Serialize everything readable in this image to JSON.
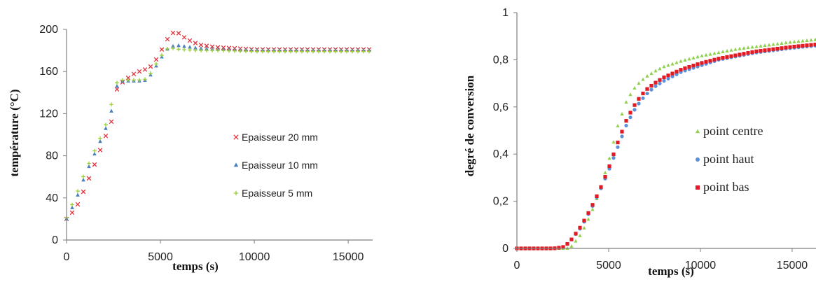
{
  "chart_data": [
    {
      "type": "scatter",
      "title": "",
      "xlabel": "temps (s)",
      "ylabel": "température (°C)",
      "xlim": [
        0,
        16300
      ],
      "ylim": [
        0,
        200
      ],
      "xticks": [
        0,
        5000,
        10000,
        15000
      ],
      "yticks": [
        0,
        40,
        80,
        120,
        160,
        200
      ],
      "grid": false,
      "legend": "center-right",
      "series": [
        {
          "name": "Epaisseur 20 mm",
          "color": "#e0303a",
          "marker": "x",
          "x": [
            0,
            500,
            1000,
            1500,
            2000,
            2300,
            2500,
            2700,
            3000,
            3500,
            4000,
            4400,
            4800,
            5200,
            5500,
            5800,
            6000,
            6300,
            6700,
            7200,
            8000,
            9000,
            10000,
            12000,
            14000,
            16300
          ],
          "y": [
            20,
            30,
            50,
            72,
            95,
            108,
            118,
            145,
            150,
            157,
            161,
            163,
            172,
            185,
            195,
            198,
            196,
            192,
            188,
            185,
            183,
            182,
            181,
            181,
            181,
            181
          ]
        },
        {
          "name": "Epaisseur 10 mm",
          "color": "#4a7ebf",
          "marker": "triangle",
          "x": [
            0,
            500,
            1000,
            1500,
            2000,
            2300,
            2500,
            2700,
            3000,
            3500,
            4000,
            4300,
            4600,
            5000,
            5400,
            5800,
            6200,
            7000,
            8000,
            10000,
            13000,
            16300
          ],
          "y": [
            20,
            38,
            62,
            82,
            102,
            115,
            132,
            147,
            151,
            151,
            151,
            152,
            160,
            172,
            182,
            185,
            184,
            182,
            181,
            180,
            180,
            180
          ]
        },
        {
          "name": "Epaisseur 5 mm",
          "color": "#9acd3a",
          "marker": "plus",
          "x": [
            0,
            500,
            1000,
            1500,
            2000,
            2300,
            2500,
            2700,
            3000,
            3500,
            4000,
            4300,
            4600,
            5000,
            5400,
            5700,
            6000,
            7000,
            8000,
            10000,
            13000,
            16300
          ],
          "y": [
            21,
            42,
            65,
            85,
            105,
            120,
            140,
            150,
            152,
            152,
            152,
            153,
            162,
            174,
            182,
            182,
            181,
            180,
            180,
            179,
            179,
            179
          ]
        }
      ]
    },
    {
      "type": "scatter",
      "title": "",
      "xlabel": "temps (s)",
      "ylabel": "degré de conversion",
      "xlim": [
        0,
        16300
      ],
      "ylim": [
        0,
        1
      ],
      "xticks": [
        0,
        5000,
        10000,
        15000
      ],
      "yticks": [
        0,
        0.2,
        0.4,
        0.6,
        0.8,
        1
      ],
      "ytick_labels": [
        "0",
        "0,2",
        "0,4",
        "0,6",
        "0,8",
        "1"
      ],
      "grid": false,
      "legend": "center-right",
      "series": [
        {
          "name": "point centre",
          "color": "#8fd14f",
          "marker": "triangle",
          "x": [
            0,
            1000,
            2000,
            2500,
            2800,
            3000,
            3500,
            4000,
            4500,
            5000,
            5500,
            6000,
            6500,
            7000,
            7500,
            8000,
            9000,
            10000,
            11000,
            12000,
            13000,
            14000,
            15000,
            16300
          ],
          "y": [
            0,
            0,
            0,
            0,
            0,
            0.01,
            0.06,
            0.14,
            0.24,
            0.37,
            0.52,
            0.63,
            0.69,
            0.725,
            0.75,
            0.77,
            0.795,
            0.815,
            0.83,
            0.845,
            0.855,
            0.865,
            0.875,
            0.885
          ]
        },
        {
          "name": "point haut",
          "color": "#5b8fd6",
          "marker": "circle",
          "x": [
            0,
            1000,
            2000,
            2500,
            2700,
            3000,
            3500,
            4000,
            4500,
            5000,
            5500,
            6000,
            6500,
            7000,
            7500,
            8000,
            9000,
            10000,
            11000,
            12000,
            13000,
            14000,
            15000,
            16300
          ],
          "y": [
            0,
            0,
            0,
            0.005,
            0.015,
            0.04,
            0.09,
            0.16,
            0.24,
            0.33,
            0.43,
            0.53,
            0.6,
            0.65,
            0.685,
            0.71,
            0.75,
            0.775,
            0.8,
            0.815,
            0.83,
            0.84,
            0.85,
            0.86
          ]
        },
        {
          "name": "point bas",
          "color": "#e01b24",
          "marker": "square",
          "x": [
            0,
            1000,
            2000,
            2500,
            2700,
            3000,
            3500,
            4000,
            4500,
            5000,
            5500,
            6000,
            6500,
            7000,
            7500,
            8000,
            9000,
            10000,
            11000,
            12000,
            13000,
            14000,
            15000,
            16300
          ],
          "y": [
            0,
            0,
            0,
            0.005,
            0.015,
            0.04,
            0.095,
            0.165,
            0.245,
            0.34,
            0.45,
            0.55,
            0.62,
            0.67,
            0.7,
            0.725,
            0.76,
            0.785,
            0.805,
            0.82,
            0.835,
            0.845,
            0.855,
            0.865
          ]
        }
      ]
    }
  ]
}
